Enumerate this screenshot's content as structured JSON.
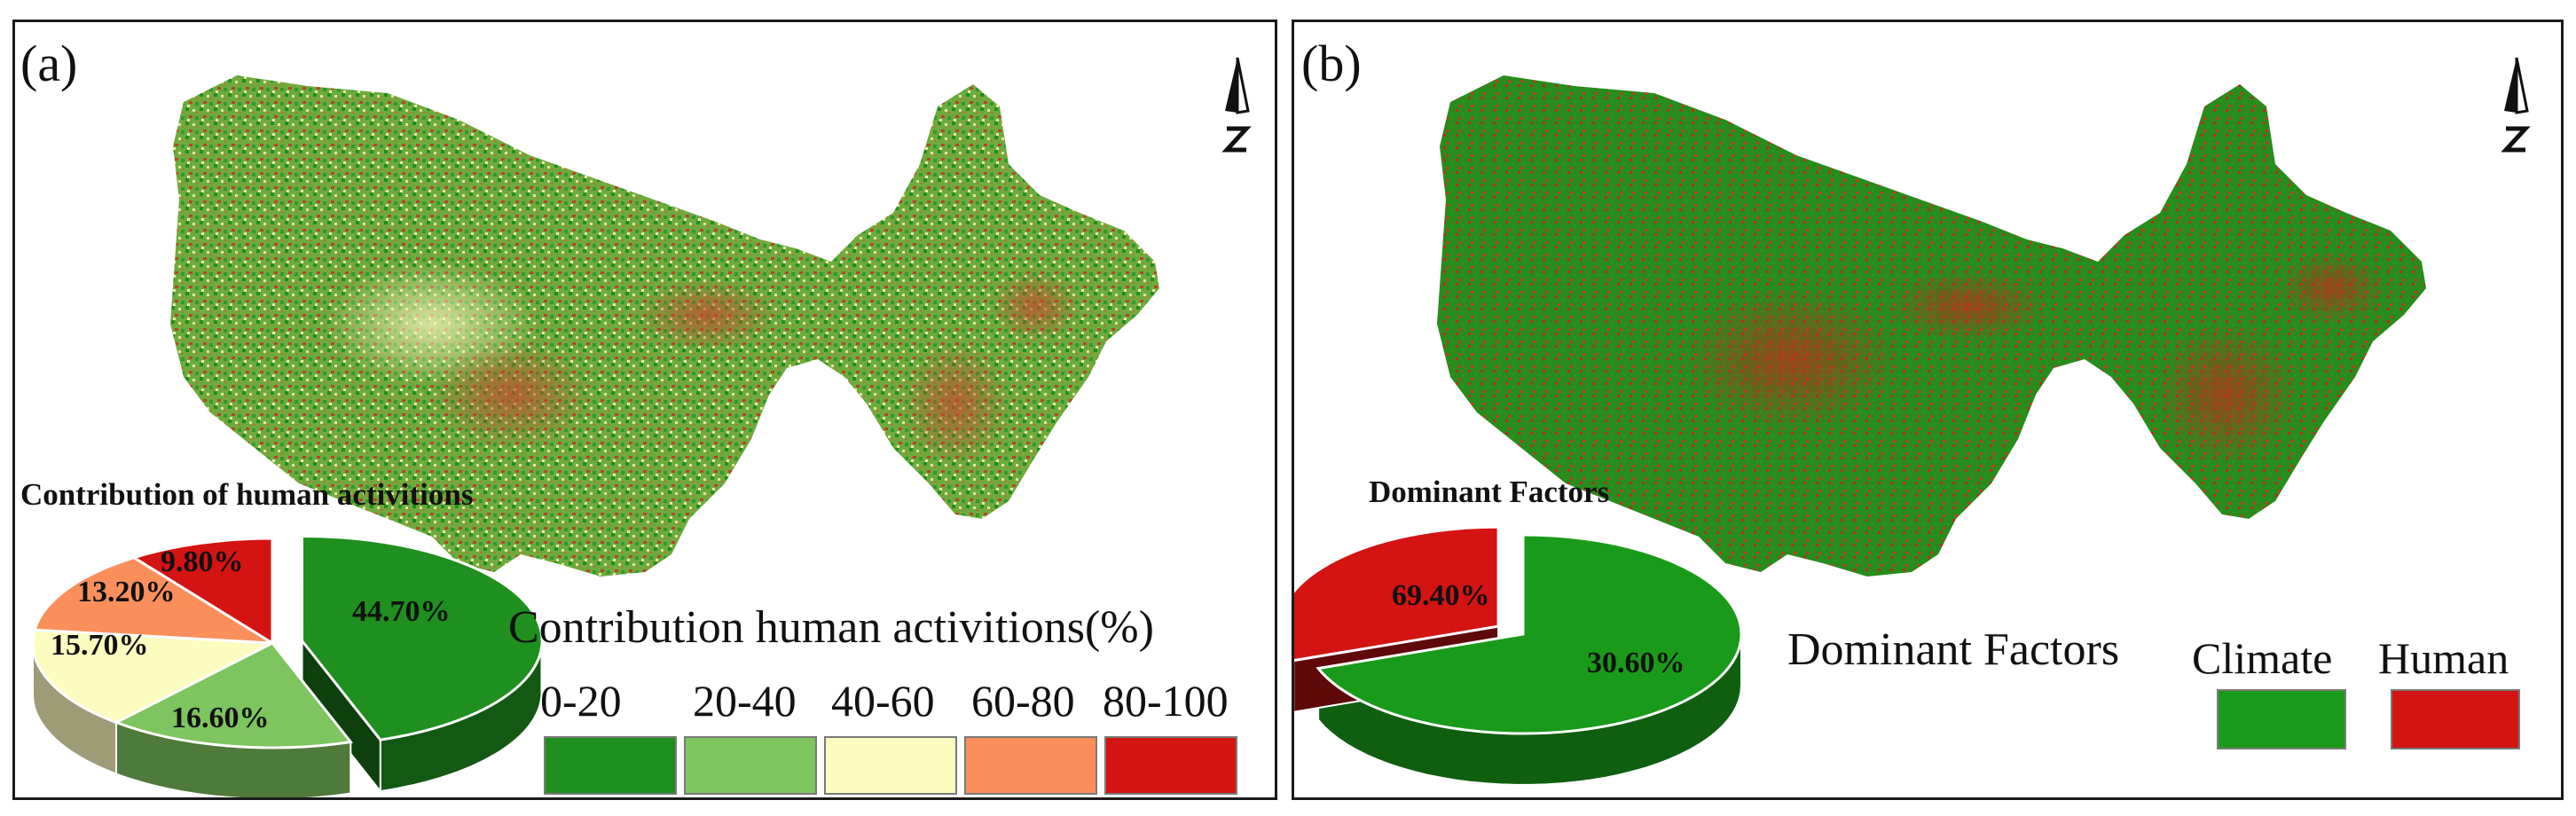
{
  "panel_a": {
    "label": "(a)",
    "pie_title": "Contribution of human activitions",
    "legend_title": "Contribution human activitions(%)",
    "classes": [
      {
        "name": "0-20",
        "color": "#1f8f1f"
      },
      {
        "name": "20-40",
        "color": "#7ec45f"
      },
      {
        "name": "40-60",
        "color": "#fdfcc0"
      },
      {
        "name": "60-80",
        "color": "#fb8f5c"
      },
      {
        "name": "80-100",
        "color": "#d41313"
      }
    ],
    "pie": [
      {
        "label": "44.70%",
        "value": 44.7,
        "color": "#1f8f1f"
      },
      {
        "label": "16.60%",
        "value": 16.6,
        "color": "#7ec45f"
      },
      {
        "label": "15.70%",
        "value": 15.7,
        "color": "#fdfcc0"
      },
      {
        "label": "13.20%",
        "value": 13.2,
        "color": "#fb8f5c"
      },
      {
        "label": "9.80%",
        "value": 9.8,
        "color": "#d41313"
      }
    ],
    "north_arrow": "north-arrow-icon"
  },
  "panel_b": {
    "label": "(b)",
    "pie_title": "Dominant Factors",
    "legend_title": "Dominant Factors",
    "classes": [
      {
        "name": "Climate",
        "color": "#1a9a1a"
      },
      {
        "name": "Human",
        "color": "#d41313"
      }
    ],
    "pie": [
      {
        "label": "69.40%",
        "value": 69.4,
        "color": "#1a9a1a"
      },
      {
        "label": "30.60%",
        "value": 30.6,
        "color": "#d41313"
      }
    ],
    "north_arrow": "north-arrow-icon"
  }
}
